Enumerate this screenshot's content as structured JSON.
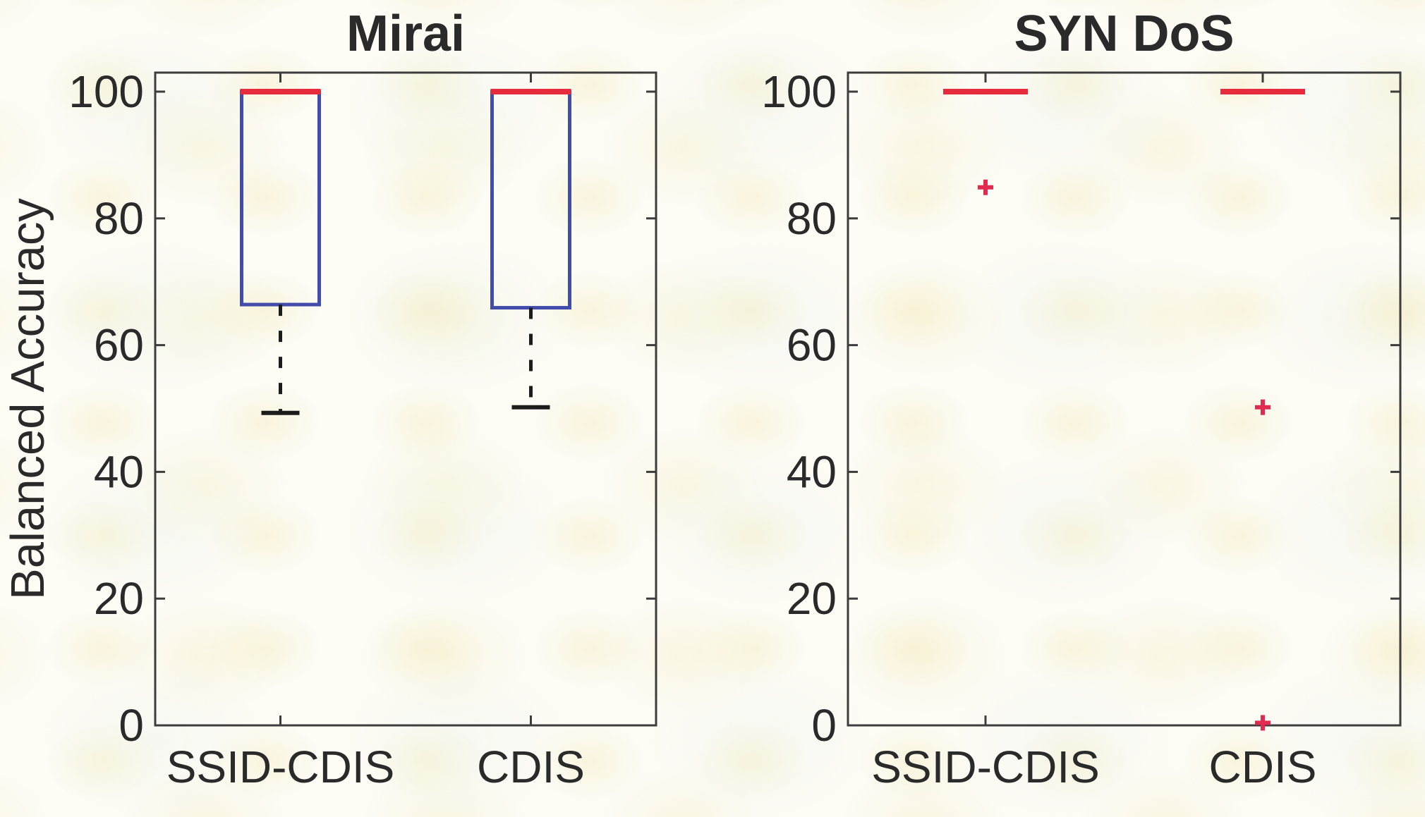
{
  "figure": {
    "kind": "matlab-boxplot-figure",
    "ylabel": "Balanced Accuracy",
    "colors": {
      "background": "#fdfcf5",
      "box_edge": "#424cab",
      "median": "#e52b3c",
      "outlier": "#e22950",
      "whisker": "#1c1c1c",
      "cap": "#1c1c1c",
      "axis": "#3d3d3d",
      "text": "#2a2a2a"
    }
  },
  "chart_data": [
    {
      "type": "boxplot",
      "title": "Mirai",
      "categories": [
        "SSID-CDIS",
        "CDIS"
      ],
      "ylabel": "Balanced Accuracy",
      "ylim": [
        0,
        103
      ],
      "yticks": [
        0,
        20,
        40,
        60,
        80,
        100
      ],
      "grid": false,
      "legend": null,
      "series": [
        {
          "name": "SSID-CDIS",
          "q1": 66.4,
          "median": 100,
          "q3": 100,
          "whisker_low": 49.3,
          "whisker_high": 100,
          "outliers": []
        },
        {
          "name": "CDIS",
          "q1": 65.9,
          "median": 100,
          "q3": 100,
          "whisker_low": 50.2,
          "whisker_high": 100,
          "outliers": []
        }
      ]
    },
    {
      "type": "boxplot",
      "title": "SYN DoS",
      "categories": [
        "SSID-CDIS",
        "CDIS"
      ],
      "ylabel": "",
      "ylim": [
        0,
        103
      ],
      "yticks": [
        0,
        20,
        40,
        60,
        80,
        100
      ],
      "grid": false,
      "legend": null,
      "series": [
        {
          "name": "SSID-CDIS",
          "q1": 100,
          "median": 100,
          "q3": 100,
          "whisker_low": 100,
          "whisker_high": 100,
          "outliers": [
            84.9
          ]
        },
        {
          "name": "CDIS",
          "q1": 100,
          "median": 100,
          "q3": 100,
          "whisker_low": 100,
          "whisker_high": 100,
          "outliers": [
            50.2,
            0.4
          ]
        }
      ]
    }
  ]
}
